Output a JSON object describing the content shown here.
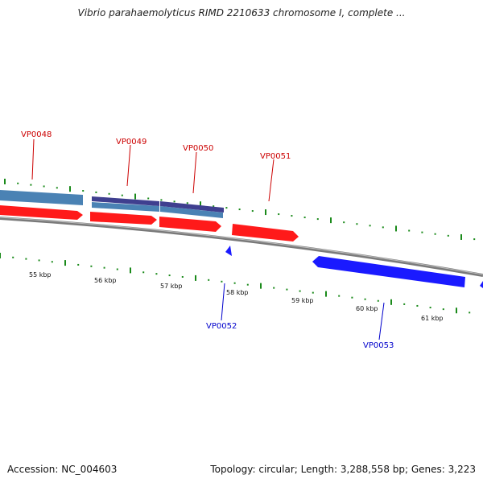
{
  "title": "Vibrio parahaemolyticus RIMD 2210633 chromosome I, complete ...",
  "accession": "Accession: NC_004603",
  "stats": "Topology: circular; Length: 3,288,558 bp; Genes: 3,223",
  "colors": {
    "forward_gene": "#ff1a1a",
    "reverse_gene": "#1a1aff",
    "cds_blue": "#4a82b4",
    "cds_purple": "#3f3f8f",
    "backbone": "#888888",
    "tick": "#1a8a1a",
    "forward_label": "#cc0000",
    "reverse_label": "#0000cc"
  },
  "ticks": [
    {
      "label": "55 kbp"
    },
    {
      "label": "56 kbp"
    },
    {
      "label": "57 kbp"
    },
    {
      "label": "58 kbp"
    },
    {
      "label": "59 kbp"
    },
    {
      "label": "60 kbp"
    },
    {
      "label": "61 kbp"
    }
  ],
  "genes": [
    {
      "name": "VP0048",
      "strand": "forward"
    },
    {
      "name": "VP0049",
      "strand": "forward"
    },
    {
      "name": "VP0050",
      "strand": "forward"
    },
    {
      "name": "VP0051",
      "strand": "forward"
    },
    {
      "name": "VP0052",
      "strand": "reverse"
    },
    {
      "name": "VP0053",
      "strand": "reverse"
    }
  ]
}
